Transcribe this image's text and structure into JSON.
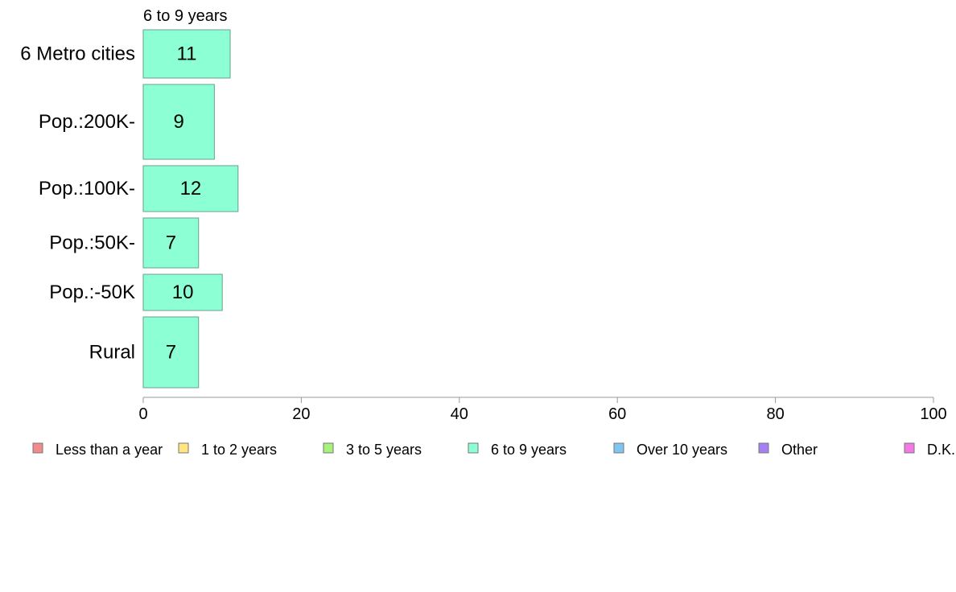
{
  "chart_data": {
    "type": "bar",
    "orientation": "horizontal",
    "title": "6 to 9 years",
    "categories": [
      "6 Metro cities",
      "Pop.:200K-",
      "Pop.:100K-",
      "Pop.:50K-",
      "Pop.:-50K",
      "Rural"
    ],
    "series": [
      {
        "name": "6 to 9 years",
        "values": [
          11,
          9,
          12,
          7,
          10,
          7
        ],
        "color": "#8cffd4"
      }
    ],
    "xlim": [
      0,
      100
    ],
    "x_ticks": [
      0,
      20,
      40,
      60,
      80,
      100
    ],
    "grid": false,
    "legend_position": "bottom",
    "legend": [
      {
        "label": "Less than a year",
        "color": "#f28c8c"
      },
      {
        "label": "1 to 2 years",
        "color": "#ffe680"
      },
      {
        "label": "3 to 5 years",
        "color": "#a6f27a"
      },
      {
        "label": "6 to 9 years",
        "color": "#8cffd4"
      },
      {
        "label": "Over 10 years",
        "color": "#80c4f2"
      },
      {
        "label": "Other",
        "color": "#a680f2"
      },
      {
        "label": "D.K.",
        "color": "#f27ae6"
      }
    ]
  }
}
